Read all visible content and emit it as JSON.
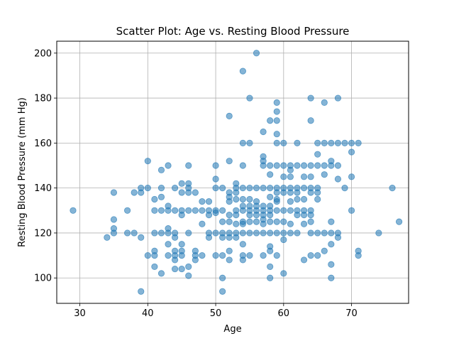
{
  "chart_data": {
    "type": "scatter",
    "title": "Scatter Plot: Age vs. Resting Blood Pressure",
    "xlabel": "Age",
    "ylabel": "Resting Blood Pressure (mm Hg)",
    "xlim": [
      26.6,
      78.4
    ],
    "ylim": [
      88.7,
      205.3
    ],
    "xticks": [
      30,
      40,
      50,
      60,
      70
    ],
    "yticks": [
      100,
      120,
      140,
      160,
      180,
      200
    ],
    "grid": true,
    "point_color": "#1f77b4",
    "point_alpha": 0.55,
    "points": [
      [
        29,
        130
      ],
      [
        34,
        118
      ],
      [
        35,
        120
      ],
      [
        35,
        122
      ],
      [
        35,
        126
      ],
      [
        35,
        138
      ],
      [
        37,
        120
      ],
      [
        37,
        130
      ],
      [
        38,
        120
      ],
      [
        38,
        138
      ],
      [
        39,
        94
      ],
      [
        39,
        118
      ],
      [
        39,
        138
      ],
      [
        39,
        140
      ],
      [
        40,
        110
      ],
      [
        40,
        140
      ],
      [
        40,
        152
      ],
      [
        41,
        105
      ],
      [
        41,
        110
      ],
      [
        41,
        112
      ],
      [
        41,
        120
      ],
      [
        41,
        130
      ],
      [
        41,
        135
      ],
      [
        42,
        102
      ],
      [
        42,
        120
      ],
      [
        42,
        130
      ],
      [
        42,
        136
      ],
      [
        42,
        140
      ],
      [
        42,
        148
      ],
      [
        43,
        110
      ],
      [
        43,
        115
      ],
      [
        43,
        120
      ],
      [
        43,
        122
      ],
      [
        43,
        130
      ],
      [
        43,
        132
      ],
      [
        43,
        150
      ],
      [
        44,
        104
      ],
      [
        44,
        108
      ],
      [
        44,
        110
      ],
      [
        44,
        112
      ],
      [
        44,
        118
      ],
      [
        44,
        120
      ],
      [
        44,
        130
      ],
      [
        44,
        140
      ],
      [
        45,
        104
      ],
      [
        45,
        110
      ],
      [
        45,
        112
      ],
      [
        45,
        115
      ],
      [
        45,
        128
      ],
      [
        45,
        130
      ],
      [
        45,
        138
      ],
      [
        45,
        142
      ],
      [
        46,
        101
      ],
      [
        46,
        105
      ],
      [
        46,
        120
      ],
      [
        46,
        130
      ],
      [
        46,
        138
      ],
      [
        46,
        140
      ],
      [
        46,
        142
      ],
      [
        46,
        150
      ],
      [
        47,
        108
      ],
      [
        47,
        110
      ],
      [
        47,
        112
      ],
      [
        47,
        130
      ],
      [
        47,
        138
      ],
      [
        48,
        110
      ],
      [
        48,
        124
      ],
      [
        48,
        130
      ],
      [
        48,
        134
      ],
      [
        49,
        118
      ],
      [
        49,
        120
      ],
      [
        49,
        128
      ],
      [
        49,
        130
      ],
      [
        49,
        134
      ],
      [
        50,
        110
      ],
      [
        50,
        120
      ],
      [
        50,
        129
      ],
      [
        50,
        130
      ],
      [
        50,
        140
      ],
      [
        50,
        144
      ],
      [
        50,
        150
      ],
      [
        51,
        94
      ],
      [
        51,
        100
      ],
      [
        51,
        110
      ],
      [
        51,
        118
      ],
      [
        51,
        120
      ],
      [
        51,
        125
      ],
      [
        51,
        130
      ],
      [
        51,
        140
      ],
      [
        52,
        108
      ],
      [
        52,
        112
      ],
      [
        52,
        118
      ],
      [
        52,
        120
      ],
      [
        52,
        125
      ],
      [
        52,
        128
      ],
      [
        52,
        134
      ],
      [
        52,
        136
      ],
      [
        52,
        138
      ],
      [
        52,
        152
      ],
      [
        52,
        172
      ],
      [
        53,
        118
      ],
      [
        53,
        120
      ],
      [
        53,
        124
      ],
      [
        53,
        128
      ],
      [
        53,
        130
      ],
      [
        53,
        135
      ],
      [
        53,
        138
      ],
      [
        53,
        140
      ],
      [
        53,
        142
      ],
      [
        54,
        108
      ],
      [
        54,
        110
      ],
      [
        54,
        115
      ],
      [
        54,
        120
      ],
      [
        54,
        124
      ],
      [
        54,
        125
      ],
      [
        54,
        130
      ],
      [
        54,
        132
      ],
      [
        54,
        135
      ],
      [
        54,
        140
      ],
      [
        54,
        150
      ],
      [
        54,
        160
      ],
      [
        54,
        192
      ],
      [
        55,
        110
      ],
      [
        55,
        120
      ],
      [
        55,
        125
      ],
      [
        55,
        128
      ],
      [
        55,
        130
      ],
      [
        55,
        132
      ],
      [
        55,
        135
      ],
      [
        55,
        140
      ],
      [
        55,
        160
      ],
      [
        55,
        180
      ],
      [
        56,
        120
      ],
      [
        56,
        125
      ],
      [
        56,
        128
      ],
      [
        56,
        130
      ],
      [
        56,
        132
      ],
      [
        56,
        134
      ],
      [
        56,
        140
      ],
      [
        56,
        200
      ],
      [
        57,
        110
      ],
      [
        57,
        120
      ],
      [
        57,
        124
      ],
      [
        57,
        126
      ],
      [
        57,
        128
      ],
      [
        57,
        130
      ],
      [
        57,
        132
      ],
      [
        57,
        140
      ],
      [
        57,
        150
      ],
      [
        57,
        152
      ],
      [
        57,
        154
      ],
      [
        57,
        165
      ],
      [
        58,
        100
      ],
      [
        58,
        105
      ],
      [
        58,
        112
      ],
      [
        58,
        114
      ],
      [
        58,
        120
      ],
      [
        58,
        125
      ],
      [
        58,
        128
      ],
      [
        58,
        130
      ],
      [
        58,
        132
      ],
      [
        58,
        136
      ],
      [
        58,
        140
      ],
      [
        58,
        146
      ],
      [
        58,
        150
      ],
      [
        58,
        170
      ],
      [
        59,
        110
      ],
      [
        59,
        120
      ],
      [
        59,
        125
      ],
      [
        59,
        130
      ],
      [
        59,
        134
      ],
      [
        59,
        135
      ],
      [
        59,
        138
      ],
      [
        59,
        140
      ],
      [
        59,
        150
      ],
      [
        59,
        160
      ],
      [
        59,
        164
      ],
      [
        59,
        170
      ],
      [
        59,
        174
      ],
      [
        59,
        178
      ],
      [
        60,
        102
      ],
      [
        60,
        117
      ],
      [
        60,
        120
      ],
      [
        60,
        125
      ],
      [
        60,
        130
      ],
      [
        60,
        138
      ],
      [
        60,
        140
      ],
      [
        60,
        145
      ],
      [
        60,
        150
      ],
      [
        60,
        160
      ],
      [
        61,
        120
      ],
      [
        61,
        124
      ],
      [
        61,
        130
      ],
      [
        61,
        134
      ],
      [
        61,
        138
      ],
      [
        61,
        140
      ],
      [
        61,
        145
      ],
      [
        61,
        148
      ],
      [
        61,
        150
      ],
      [
        62,
        120
      ],
      [
        62,
        128
      ],
      [
        62,
        130
      ],
      [
        62,
        135
      ],
      [
        62,
        138
      ],
      [
        62,
        140
      ],
      [
        62,
        150
      ],
      [
        62,
        160
      ],
      [
        63,
        108
      ],
      [
        63,
        124
      ],
      [
        63,
        128
      ],
      [
        63,
        130
      ],
      [
        63,
        135
      ],
      [
        63,
        140
      ],
      [
        63,
        145
      ],
      [
        63,
        150
      ],
      [
        64,
        110
      ],
      [
        64,
        120
      ],
      [
        64,
        125
      ],
      [
        64,
        128
      ],
      [
        64,
        130
      ],
      [
        64,
        138
      ],
      [
        64,
        140
      ],
      [
        64,
        145
      ],
      [
        64,
        150
      ],
      [
        64,
        170
      ],
      [
        64,
        180
      ],
      [
        65,
        110
      ],
      [
        65,
        120
      ],
      [
        65,
        135
      ],
      [
        65,
        138
      ],
      [
        65,
        140
      ],
      [
        65,
        150
      ],
      [
        65,
        155
      ],
      [
        65,
        160
      ],
      [
        66,
        112
      ],
      [
        66,
        120
      ],
      [
        66,
        146
      ],
      [
        66,
        150
      ],
      [
        66,
        160
      ],
      [
        66,
        178
      ],
      [
        67,
        100
      ],
      [
        67,
        106
      ],
      [
        67,
        115
      ],
      [
        67,
        120
      ],
      [
        67,
        125
      ],
      [
        67,
        150
      ],
      [
        67,
        152
      ],
      [
        67,
        160
      ],
      [
        68,
        118
      ],
      [
        68,
        120
      ],
      [
        68,
        144
      ],
      [
        68,
        150
      ],
      [
        68,
        160
      ],
      [
        68,
        180
      ],
      [
        69,
        140
      ],
      [
        69,
        160
      ],
      [
        70,
        130
      ],
      [
        70,
        145
      ],
      [
        70,
        156
      ],
      [
        70,
        160
      ],
      [
        71,
        110
      ],
      [
        71,
        112
      ],
      [
        71,
        160
      ],
      [
        74,
        120
      ],
      [
        76,
        140
      ],
      [
        77,
        125
      ]
    ]
  }
}
